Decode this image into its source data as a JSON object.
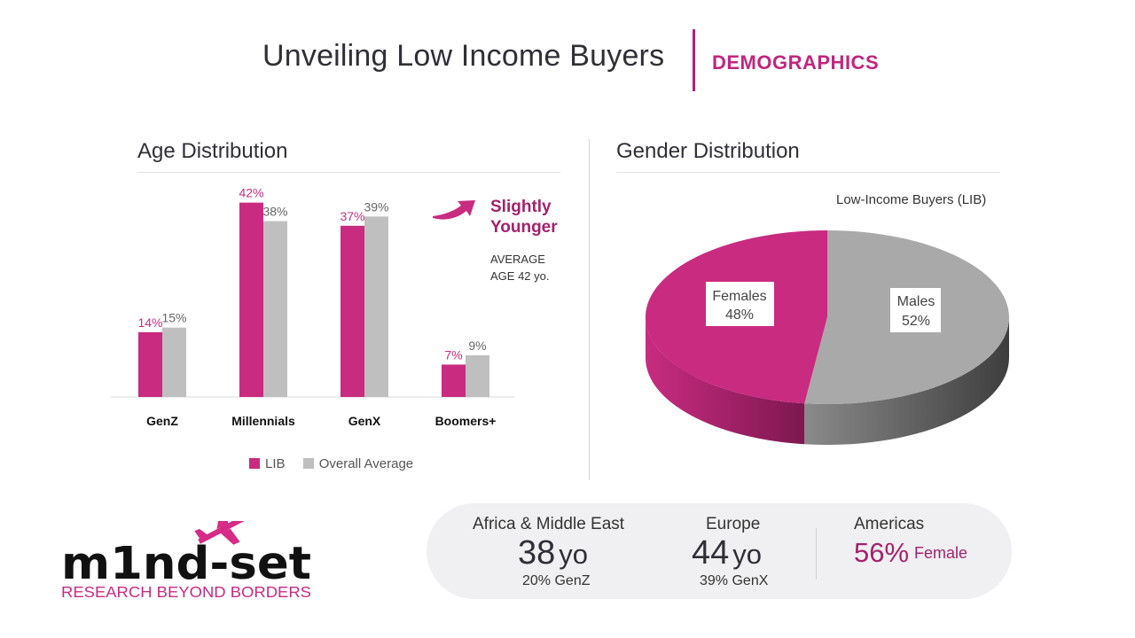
{
  "header": {
    "title": "Unveiling Low Income Buyers",
    "subtitle": "DEMOGRAPHICS"
  },
  "age_section": {
    "title": "Age Distribution",
    "note_line1": "Slightly",
    "note_line2": "Younger",
    "avg_line1": "AVERAGE",
    "avg_line2": "AGE 42 yo."
  },
  "gender_section": {
    "title": "Gender Distribution"
  },
  "colors": {
    "lib": "#c92b80",
    "overall": "#bfbfbf",
    "accent": "#a3226d",
    "male_top": "#a8a8a8",
    "male_side": "#4a4a4a",
    "female_side": "#8e1c58"
  },
  "chart_data": [
    {
      "type": "bar",
      "title": "Age Distribution",
      "categories": [
        "GenZ",
        "Millennials",
        "GenX",
        "Boomers+"
      ],
      "series": [
        {
          "name": "LIB",
          "values": [
            14,
            42,
            37,
            7
          ],
          "labels": [
            "14%",
            "42%",
            "37%",
            "7%"
          ]
        },
        {
          "name": "Overall Average",
          "values": [
            15,
            38,
            39,
            9
          ],
          "labels": [
            "15%",
            "38%",
            "39%",
            "9%"
          ]
        }
      ],
      "ylim": [
        0,
        45
      ],
      "grid": false,
      "legend": "bottom"
    },
    {
      "type": "pie",
      "title": "Low-Income Buyers (LIB)",
      "slices": [
        {
          "name": "Females",
          "value": 48,
          "label": "48%"
        },
        {
          "name": "Males",
          "value": 52,
          "label": "52%"
        }
      ]
    }
  ],
  "regions": [
    {
      "name": "Africa & Middle East",
      "value": "38",
      "unit": "yo",
      "sub": "20% GenZ"
    },
    {
      "name": "Europe",
      "value": "44",
      "unit": "yo",
      "sub": "39% GenX"
    },
    {
      "name": "Americas",
      "value": "56%",
      "unit": "Female"
    }
  ],
  "logo": {
    "wordmark": "m1nd-set",
    "tagline": "RESEARCH BEYOND BORDERS",
    "icon": "airplane-icon"
  }
}
